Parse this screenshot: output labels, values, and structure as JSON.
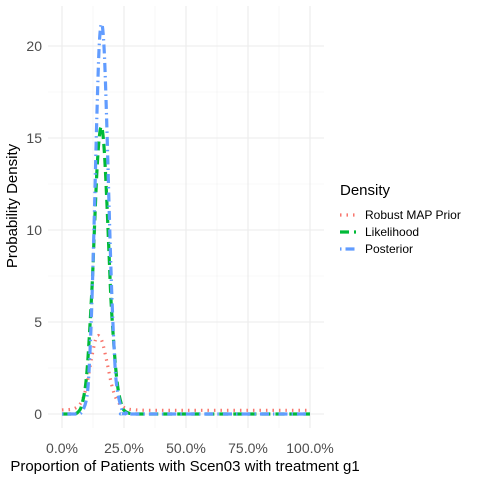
{
  "chart_data": {
    "type": "line",
    "xlabel": "Proportion of Patients with Scen03 with treatment g1",
    "ylabel": "Probability Density",
    "xlim": [
      0,
      1
    ],
    "ylim": [
      0,
      21.5
    ],
    "x_ticks": [
      0,
      0.25,
      0.5,
      0.75,
      1.0
    ],
    "x_tick_labels": [
      "0.0%",
      "25.0%",
      "50.0%",
      "75.0%",
      "100.0%"
    ],
    "y_ticks": [
      0,
      5,
      10,
      15,
      20
    ],
    "y_tick_labels": [
      "0",
      "5",
      "10",
      "15",
      "20"
    ],
    "grid": true,
    "legend": {
      "title": "Density",
      "position": "right"
    },
    "series": [
      {
        "name": "Robust MAP Prior",
        "color": "#F8766D",
        "dash": "dotted",
        "x": [
          0.0,
          0.05,
          0.08,
          0.1,
          0.12,
          0.14,
          0.16,
          0.18,
          0.2,
          0.22,
          0.25,
          0.3,
          0.4,
          0.5,
          0.6,
          0.7,
          0.8,
          0.9,
          1.0
        ],
        "y": [
          0.22,
          0.3,
          0.7,
          1.6,
          3.1,
          4.2,
          4.0,
          2.9,
          1.6,
          0.8,
          0.35,
          0.22,
          0.2,
          0.2,
          0.2,
          0.2,
          0.2,
          0.2,
          0.2
        ]
      },
      {
        "name": "Likelihood",
        "color": "#00BA38",
        "dash": "dashed",
        "x": [
          0.0,
          0.04,
          0.06,
          0.08,
          0.1,
          0.12,
          0.13,
          0.14,
          0.15,
          0.16,
          0.17,
          0.18,
          0.19,
          0.2,
          0.22,
          0.24,
          0.26,
          0.3,
          0.4,
          1.0
        ],
        "y": [
          0.0,
          0.0,
          0.05,
          0.5,
          2.2,
          6.6,
          9.8,
          13.0,
          15.0,
          15.6,
          14.4,
          11.8,
          8.6,
          5.6,
          2.0,
          0.5,
          0.1,
          0.0,
          0.0,
          0.0
        ]
      },
      {
        "name": "Posterior",
        "color": "#619CFF",
        "dash": "dotdash",
        "x": [
          0.0,
          0.06,
          0.08,
          0.1,
          0.11,
          0.12,
          0.13,
          0.14,
          0.15,
          0.16,
          0.17,
          0.18,
          0.19,
          0.2,
          0.21,
          0.22,
          0.24,
          0.26,
          0.3,
          1.0
        ],
        "y": [
          0.0,
          0.0,
          0.1,
          0.9,
          2.6,
          5.9,
          10.6,
          15.9,
          20.0,
          21.2,
          19.8,
          16.0,
          11.2,
          6.8,
          3.6,
          1.6,
          0.3,
          0.05,
          0.0,
          0.0
        ]
      }
    ]
  }
}
